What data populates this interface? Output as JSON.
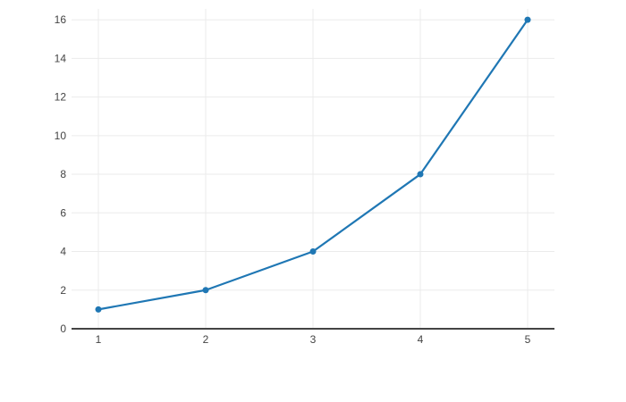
{
  "chart_data": {
    "type": "line",
    "title": "",
    "xlabel": "",
    "ylabel": "",
    "x": [
      1,
      2,
      3,
      4,
      5
    ],
    "y": [
      1,
      2,
      4,
      8,
      16
    ],
    "series": [
      {
        "name": "trace 0",
        "x": [
          1,
          2,
          3,
          4,
          5
        ],
        "values": [
          1,
          2,
          4,
          8,
          16
        ]
      }
    ],
    "xticks": [
      1,
      2,
      3,
      4,
      5
    ],
    "yticks": [
      0,
      2,
      4,
      6,
      8,
      10,
      12,
      14,
      16
    ],
    "xlim": [
      0.75,
      5.25
    ],
    "ylim": [
      0,
      16.56
    ],
    "grid": true,
    "legend": false,
    "markers": true,
    "colors": {
      "line": "#1f77b4",
      "marker": "#1f77b4",
      "grid": "#ebebeb",
      "zeroline": "#444444",
      "tick_label": "#444444",
      "background": "#ffffff"
    }
  }
}
